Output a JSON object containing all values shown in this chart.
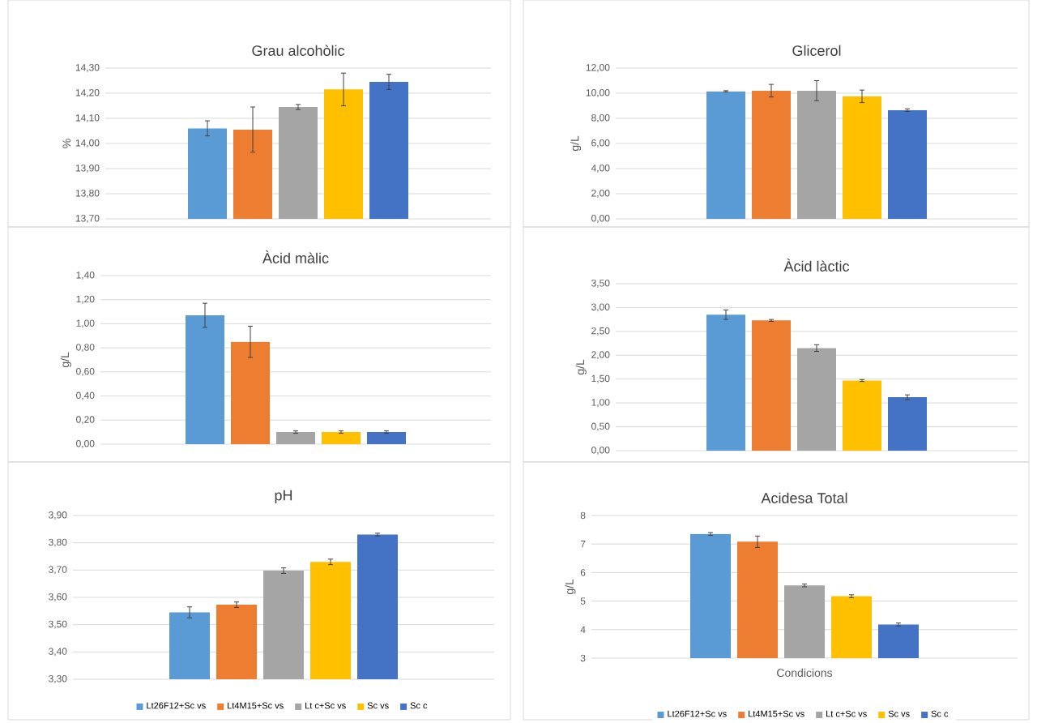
{
  "chart_data": [
    {
      "type": "bar",
      "title": "Grau alcohòlic",
      "ylabel": "%",
      "categories": [
        null
      ],
      "grid": "y",
      "legend": false,
      "ylim": [
        13.7,
        14.3
      ],
      "yticks": [
        {
          "value": 13.7,
          "label": "13,70"
        },
        {
          "value": 13.8,
          "label": "13,80"
        },
        {
          "value": 13.9,
          "label": "13,90"
        },
        {
          "value": 14.0,
          "label": "14,00"
        },
        {
          "value": 14.1,
          "label": "14,10"
        },
        {
          "value": 14.2,
          "label": "14,20"
        },
        {
          "value": 14.3,
          "label": "14,30"
        }
      ],
      "series": [
        {
          "color": "#5b9bd5",
          "values": [
            14.06
          ],
          "errors": [
            0.03
          ]
        },
        {
          "color": "#ed7d31",
          "values": [
            14.055
          ],
          "errors": [
            0.09
          ]
        },
        {
          "color": "#a5a5a5",
          "values": [
            14.145
          ],
          "errors": [
            0.01
          ]
        },
        {
          "color": "#ffc000",
          "values": [
            14.215
          ],
          "errors": [
            0.065
          ]
        },
        {
          "color": "#4472c4",
          "values": [
            14.245
          ],
          "errors": [
            0.03
          ]
        }
      ]
    },
    {
      "type": "bar",
      "title": "Glicerol",
      "ylabel": "g/L",
      "categories": [
        null
      ],
      "grid": "y",
      "legend": false,
      "ylim": [
        0,
        12
      ],
      "yticks": [
        {
          "value": 0,
          "label": "0,00"
        },
        {
          "value": 2,
          "label": "2,00"
        },
        {
          "value": 4,
          "label": "4,00"
        },
        {
          "value": 6,
          "label": "6,00"
        },
        {
          "value": 8,
          "label": "8,00"
        },
        {
          "value": 10,
          "label": "10,00"
        },
        {
          "value": 12,
          "label": "12,00"
        }
      ],
      "series": [
        {
          "color": "#5b9bd5",
          "values": [
            10.15
          ],
          "errors": [
            0.05
          ]
        },
        {
          "color": "#ed7d31",
          "values": [
            10.2
          ],
          "errors": [
            0.5
          ]
        },
        {
          "color": "#a5a5a5",
          "values": [
            10.2
          ],
          "errors": [
            0.8
          ]
        },
        {
          "color": "#ffc000",
          "values": [
            9.75
          ],
          "errors": [
            0.5
          ]
        },
        {
          "color": "#4472c4",
          "values": [
            8.65
          ],
          "errors": [
            0.1
          ]
        }
      ]
    },
    {
      "type": "bar",
      "title": "Àcid màlic",
      "ylabel": "g/L",
      "categories": [
        null
      ],
      "grid": "y",
      "legend": false,
      "ylim": [
        0,
        1.4
      ],
      "yticks": [
        {
          "value": 0,
          "label": "0,00"
        },
        {
          "value": 0.2,
          "label": "0,20"
        },
        {
          "value": 0.4,
          "label": "0,40"
        },
        {
          "value": 0.6,
          "label": "0,60"
        },
        {
          "value": 0.8,
          "label": "0,80"
        },
        {
          "value": 1.0,
          "label": "1,00"
        },
        {
          "value": 1.2,
          "label": "1,20"
        },
        {
          "value": 1.4,
          "label": "1,40"
        }
      ],
      "series": [
        {
          "color": "#5b9bd5",
          "values": [
            1.07
          ],
          "errors": [
            0.1
          ]
        },
        {
          "color": "#ed7d31",
          "values": [
            0.85
          ],
          "errors": [
            0.13
          ]
        },
        {
          "color": "#a5a5a5",
          "values": [
            0.1
          ],
          "errors": [
            0.01
          ]
        },
        {
          "color": "#ffc000",
          "values": [
            0.1
          ],
          "errors": [
            0.01
          ]
        },
        {
          "color": "#4472c4",
          "values": [
            0.1
          ],
          "errors": [
            0.01
          ]
        }
      ]
    },
    {
      "type": "bar",
      "title": "Àcid làctic",
      "ylabel": "g/L",
      "categories": [
        null
      ],
      "grid": "y",
      "legend": false,
      "ylim": [
        0,
        3.5
      ],
      "yticks": [
        {
          "value": 0,
          "label": "0,00"
        },
        {
          "value": 0.5,
          "label": "0,50"
        },
        {
          "value": 1.0,
          "label": "1,00"
        },
        {
          "value": 1.5,
          "label": "1,50"
        },
        {
          "value": 2.0,
          "label": "2,00"
        },
        {
          "value": 2.5,
          "label": "2,50"
        },
        {
          "value": 3.0,
          "label": "3,00"
        },
        {
          "value": 3.5,
          "label": "3,50"
        }
      ],
      "series": [
        {
          "color": "#5b9bd5",
          "values": [
            2.85
          ],
          "errors": [
            0.1
          ]
        },
        {
          "color": "#ed7d31",
          "values": [
            2.73
          ],
          "errors": [
            0.02
          ]
        },
        {
          "color": "#a5a5a5",
          "values": [
            2.15
          ],
          "errors": [
            0.07
          ]
        },
        {
          "color": "#ffc000",
          "values": [
            1.47
          ],
          "errors": [
            0.02
          ]
        },
        {
          "color": "#4472c4",
          "values": [
            1.12
          ],
          "errors": [
            0.05
          ]
        }
      ]
    },
    {
      "type": "bar",
      "title": "pH",
      "categories": [
        null
      ],
      "grid": "y",
      "legend": "bottom",
      "ylim": [
        3.3,
        3.9
      ],
      "yticks": [
        {
          "value": 3.3,
          "label": "3,30"
        },
        {
          "value": 3.4,
          "label": "3,40"
        },
        {
          "value": 3.5,
          "label": "3,50"
        },
        {
          "value": 3.6,
          "label": "3,60"
        },
        {
          "value": 3.7,
          "label": "3,70"
        },
        {
          "value": 3.8,
          "label": "3,80"
        },
        {
          "value": 3.9,
          "label": "3,90"
        }
      ],
      "series": [
        {
          "name": "Lt26F12+Sc vs",
          "color": "#5b9bd5",
          "values": [
            3.545
          ],
          "errors": [
            0.02
          ]
        },
        {
          "name": "Lt4M15+Sc vs",
          "color": "#ed7d31",
          "values": [
            3.573
          ],
          "errors": [
            0.01
          ]
        },
        {
          "name": "Lt c+Sc vs",
          "color": "#a5a5a5",
          "values": [
            3.698
          ],
          "errors": [
            0.01
          ]
        },
        {
          "name": "Sc vs",
          "color": "#ffc000",
          "values": [
            3.73
          ],
          "errors": [
            0.01
          ]
        },
        {
          "name": "Sc c",
          "color": "#4472c4",
          "values": [
            3.83
          ],
          "errors": [
            0.005
          ]
        }
      ]
    },
    {
      "type": "bar",
      "title": "Acidesa Total",
      "ylabel": "g/L",
      "xlabel": "Condicions",
      "categories": [
        null
      ],
      "grid": "y",
      "legend": "bottom",
      "ylim": [
        3,
        8
      ],
      "yticks": [
        3,
        4,
        5,
        6,
        7,
        8
      ],
      "series": [
        {
          "name": "Lt26F12+Sc vs",
          "color": "#5b9bd5",
          "values": [
            7.35
          ],
          "errors": [
            0.05
          ]
        },
        {
          "name": "Lt4M15+Sc vs",
          "color": "#ed7d31",
          "values": [
            7.08
          ],
          "errors": [
            0.2
          ]
        },
        {
          "name": "Lt c+Sc vs",
          "color": "#a5a5a5",
          "values": [
            5.55
          ],
          "errors": [
            0.05
          ]
        },
        {
          "name": "Sc vs",
          "color": "#ffc000",
          "values": [
            5.17
          ],
          "errors": [
            0.05
          ]
        },
        {
          "name": "Sc c",
          "color": "#4472c4",
          "values": [
            4.18
          ],
          "errors": [
            0.05
          ]
        }
      ]
    }
  ]
}
